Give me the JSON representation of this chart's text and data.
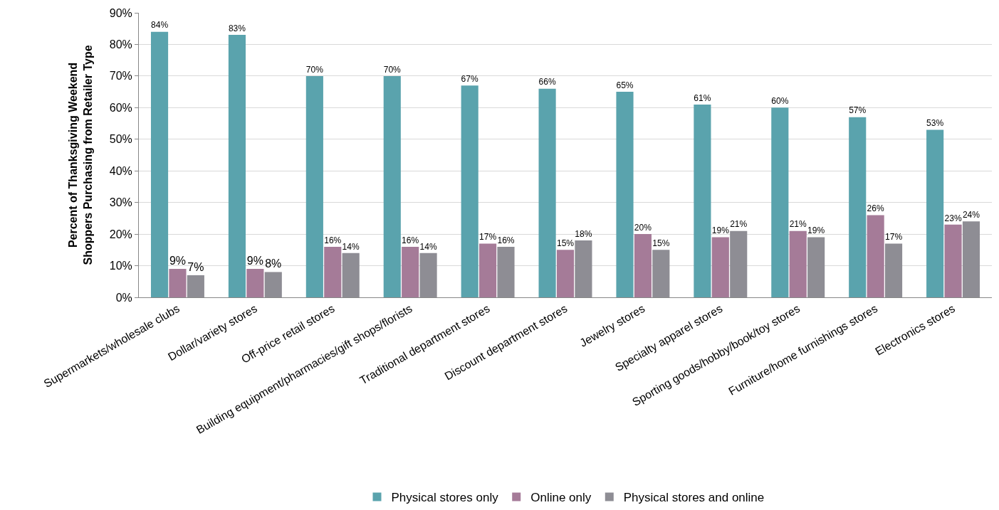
{
  "chart_data": {
    "type": "bar",
    "ylabel": "Percent of Thanksgiving Weekend\nShoppers Purchasing from Retailer Type",
    "categories": [
      "Supermarkets/wholesale clubs",
      "Dollar/variety stores",
      "Off-price retail stores",
      "Building equipment/pharmacies/gift shops/florists",
      "Traditional department stores",
      "Discount department stores",
      "Jewelry stores",
      "Specialty apparel stores",
      "Sporting goods/hobby/book/toy stores",
      "Furniture/home furnishings stores",
      "Electronics stores"
    ],
    "series": [
      {
        "name": "Physical stores only",
        "color": "#5aa3ad",
        "values": [
          84,
          83,
          70,
          70,
          67,
          66,
          65,
          61,
          60,
          57,
          53
        ],
        "value_labels": [
          "84%",
          "83%",
          "70%",
          "70%",
          "67%",
          "66%",
          "65%",
          "61%",
          "60%",
          "57%",
          "53%"
        ]
      },
      {
        "name": "Online only",
        "color": "#a57b98",
        "values": [
          9,
          9,
          16,
          16,
          17,
          15,
          20,
          19,
          21,
          26,
          23
        ],
        "value_labels": [
          "9%",
          "9%",
          "16%",
          "16%",
          "17%",
          "15%",
          "20%",
          "19%",
          "21%",
          "26%",
          "23%"
        ]
      },
      {
        "name": "Physical stores and online",
        "color": "#8e8d94",
        "values": [
          7,
          8,
          14,
          14,
          16,
          18,
          15,
          21,
          19,
          17,
          24
        ],
        "value_labels": [
          "7%",
          "8%",
          "14%",
          "14%",
          "16%",
          "18%",
          "15%",
          "21%",
          "19%",
          "17%",
          "24%"
        ]
      }
    ],
    "ylim": [
      0,
      90
    ],
    "yticks": [
      {
        "value": 0,
        "label": "0%"
      },
      {
        "value": 10,
        "label": "10%"
      },
      {
        "value": 20,
        "label": "20%"
      },
      {
        "value": 30,
        "label": "30%"
      },
      {
        "value": 40,
        "label": "40%"
      },
      {
        "value": 50,
        "label": "50%"
      },
      {
        "value": 60,
        "label": "60%"
      },
      {
        "value": 70,
        "label": "70%"
      },
      {
        "value": 80,
        "label": "80%"
      },
      {
        "value": 90,
        "label": "90%"
      }
    ],
    "grid": "y",
    "legend": "bottom"
  }
}
